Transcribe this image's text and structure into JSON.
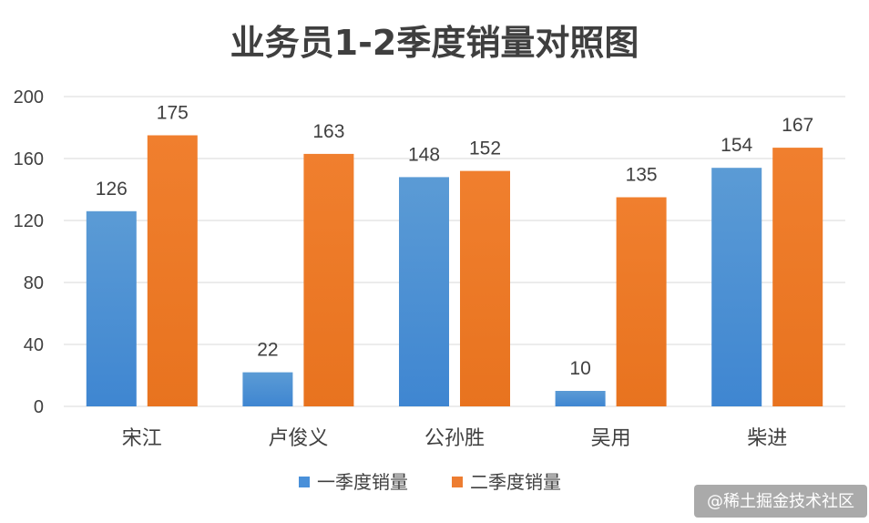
{
  "chart_data": {
    "type": "bar",
    "title": "业务员1-2季度销量对照图",
    "categories": [
      "宋江",
      "卢俊义",
      "公孙胜",
      "吴用",
      "柴进"
    ],
    "series": [
      {
        "name": "一季度销量",
        "values": [
          126,
          22,
          148,
          10,
          154
        ],
        "color": "#4a90d9"
      },
      {
        "name": "二季度销量",
        "values": [
          175,
          163,
          152,
          135,
          167
        ],
        "color": "#ed7d31"
      }
    ],
    "ylim": [
      0,
      200
    ],
    "yticks": [
      0,
      40,
      80,
      120,
      160,
      200
    ],
    "grid": true,
    "legend": "bottom",
    "xlabel": "",
    "ylabel": ""
  },
  "watermark": "@稀土掘金技术社区"
}
